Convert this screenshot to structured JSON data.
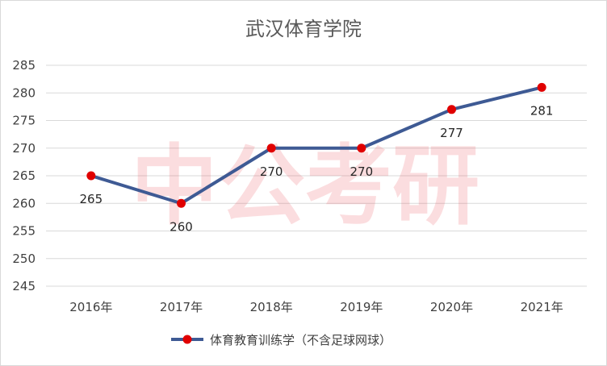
{
  "chart_data": {
    "type": "line",
    "title": "武汉体育学院",
    "watermark": "中公考研",
    "categories": [
      "2016年",
      "2017年",
      "2018年",
      "2019年",
      "2020年",
      "2021年"
    ],
    "series": [
      {
        "name": "体育教育训练学（不含足球网球）",
        "values": [
          265,
          260,
          270,
          270,
          277,
          281
        ],
        "line_color": "#3e5a94",
        "marker_color": "#e00000"
      }
    ],
    "ylim": [
      245,
      285
    ],
    "yticks": [
      245,
      250,
      255,
      260,
      265,
      270,
      275,
      280,
      285
    ],
    "data_labels": [
      "265",
      "260",
      "270",
      "270",
      "277",
      "281"
    ],
    "grid": true,
    "legend_position": "bottom"
  }
}
